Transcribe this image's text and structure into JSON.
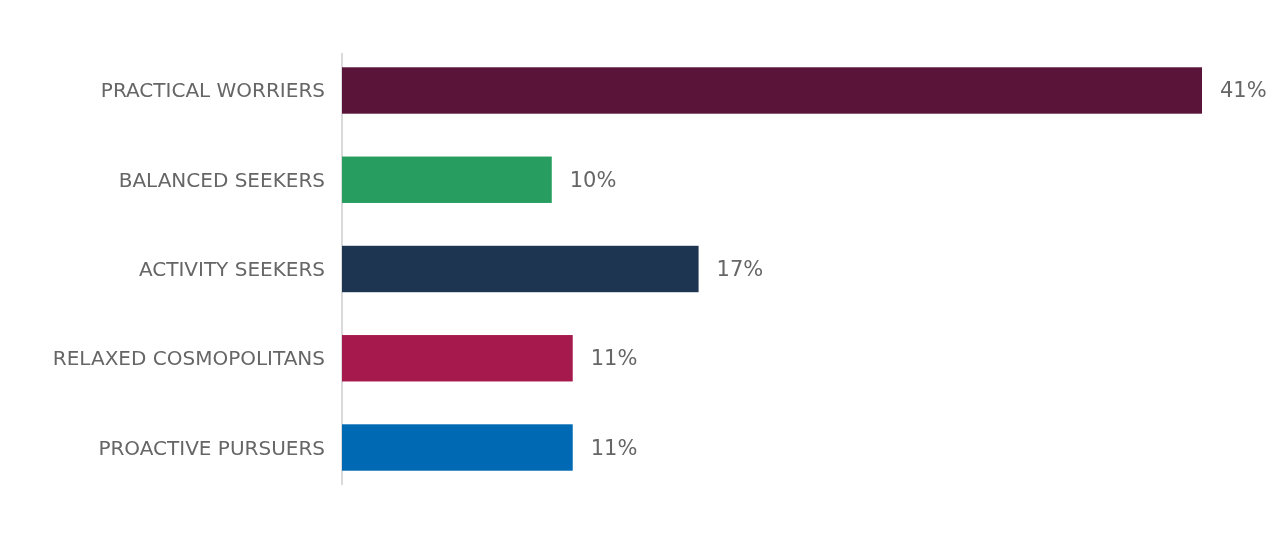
{
  "chart_data": {
    "type": "bar",
    "orientation": "horizontal",
    "categories": [
      "PRACTICAL WORRIERS",
      "BALANCED SEEKERS",
      "ACTIVITY SEEKERS",
      "RELAXED COSMOPOLITANS",
      "PROACTIVE PURSUERS"
    ],
    "values": [
      41,
      10,
      17,
      11,
      11
    ],
    "colors": [
      "#5a1439",
      "#279e5f",
      "#1e3552",
      "#a6194c",
      "#0069b4"
    ],
    "value_labels": [
      "41%",
      "10%",
      "17%",
      "11%",
      "11%"
    ]
  }
}
